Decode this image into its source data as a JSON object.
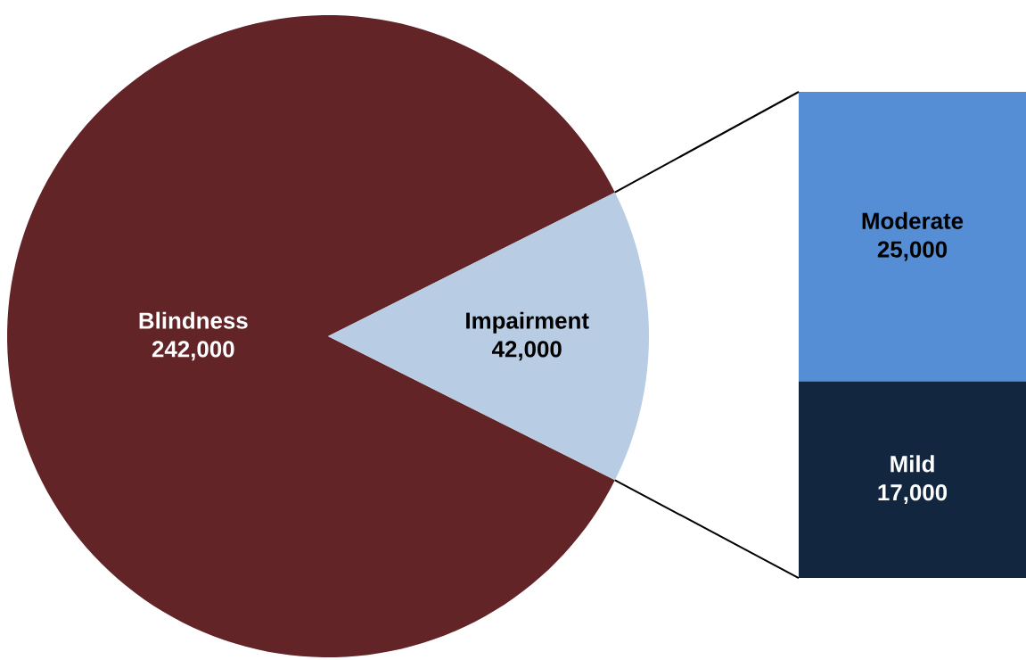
{
  "chart_data": [
    {
      "type": "pie",
      "categories": [
        "Blindness",
        "Impairment"
      ],
      "values": [
        242000,
        42000
      ],
      "colors": [
        "#622426",
        "#b8cce4"
      ],
      "value_labels": [
        "242,000",
        "42,000"
      ]
    },
    {
      "type": "bar",
      "stacked": true,
      "categories": [
        null
      ],
      "series": [
        {
          "name": "Mild",
          "color": "#13263f",
          "values": [
            17000
          ],
          "value_labels": [
            "17,000"
          ]
        },
        {
          "name": "Moderate",
          "color": "#558ed5",
          "values": [
            25000
          ],
          "value_labels": [
            "25,000"
          ]
        }
      ]
    }
  ]
}
